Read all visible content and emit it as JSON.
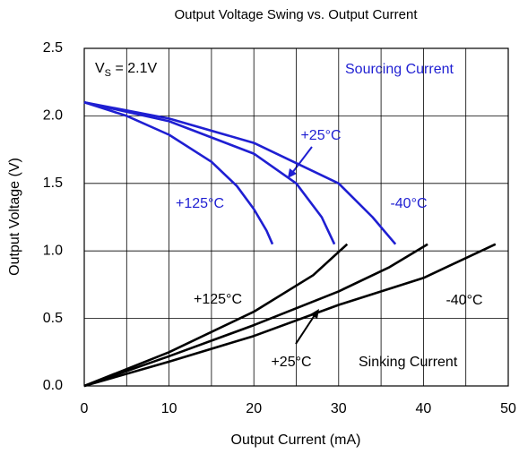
{
  "chart_data": {
    "type": "line",
    "title": "Output Voltage Swing vs. Output Current",
    "x_label": "Output Current (mA)",
    "y_label": "Output Voltage (V)",
    "supply_label": [
      "V",
      "S",
      " = 2.1V"
    ],
    "sourcing_label": "Sourcing Current",
    "sinking_label": "Sinking Current",
    "xlim": [
      0,
      50
    ],
    "xticks": [
      0,
      10,
      20,
      30,
      40,
      50
    ],
    "xminor": [
      5,
      15,
      25,
      35,
      45
    ],
    "ylim": [
      0,
      2.5
    ],
    "yticks": [
      {
        "value": 0,
        "label": "0.0"
      },
      0.5,
      {
        "value": 1,
        "label": "1.0"
      },
      1.5,
      {
        "value": 2,
        "label": "2.0"
      },
      2.5
    ],
    "grid": true,
    "series": [
      {
        "name": "+125°C",
        "color": "#1f1fd2",
        "x": [
          0,
          5,
          10,
          15,
          18,
          20,
          21.5,
          22.2
        ],
        "values": [
          2.1,
          2.0,
          1.86,
          1.66,
          1.48,
          1.31,
          1.15,
          1.05
        ]
      },
      {
        "name": "+25°C",
        "color": "#1f1fd2",
        "x": [
          0,
          10,
          20,
          25,
          28,
          29.5
        ],
        "values": [
          2.1,
          1.96,
          1.72,
          1.5,
          1.25,
          1.05
        ]
      },
      {
        "name": "-40°C",
        "color": "#1f1fd2",
        "x": [
          0,
          10,
          20,
          30,
          34,
          36.7
        ],
        "values": [
          2.1,
          1.98,
          1.8,
          1.5,
          1.25,
          1.05
        ]
      },
      {
        "name": "+125°C",
        "color": "#000000",
        "x": [
          0,
          10,
          20,
          27,
          31
        ],
        "values": [
          0,
          0.25,
          0.55,
          0.82,
          1.05
        ]
      },
      {
        "name": "+25°C",
        "color": "#000000",
        "x": [
          0,
          10,
          20,
          30,
          36,
          40.5
        ],
        "values": [
          0,
          0.22,
          0.45,
          0.7,
          0.88,
          1.05
        ]
      },
      {
        "name": "-40°C",
        "color": "#000000",
        "x": [
          0,
          10,
          20,
          30,
          40,
          48.5
        ],
        "values": [
          0,
          0.18,
          0.37,
          0.6,
          0.8,
          1.05
        ]
      }
    ]
  }
}
